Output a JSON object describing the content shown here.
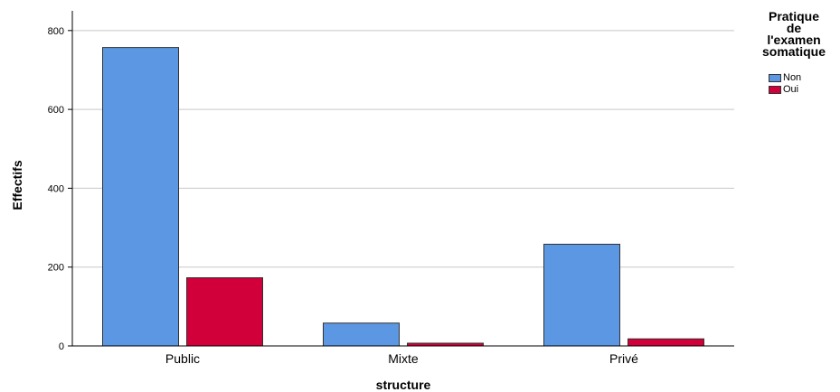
{
  "chart_data": {
    "type": "bar",
    "categories": [
      "Public",
      "Mixte",
      "Privé"
    ],
    "series": [
      {
        "name": "Non",
        "color": "#5b97e3",
        "values": [
          757,
          58,
          258
        ]
      },
      {
        "name": "Oui",
        "color": "#d1003a",
        "values": [
          173,
          7,
          18
        ]
      }
    ],
    "xlabel": "structure",
    "ylabel": "Effectifs",
    "ylim": [
      0,
      850
    ],
    "yticks": [
      0,
      200,
      400,
      600,
      800
    ],
    "grid": true,
    "legend": {
      "position": "top-right",
      "title_lines": [
        "Pratique",
        "de",
        "l'examen",
        "somatique"
      ]
    }
  }
}
